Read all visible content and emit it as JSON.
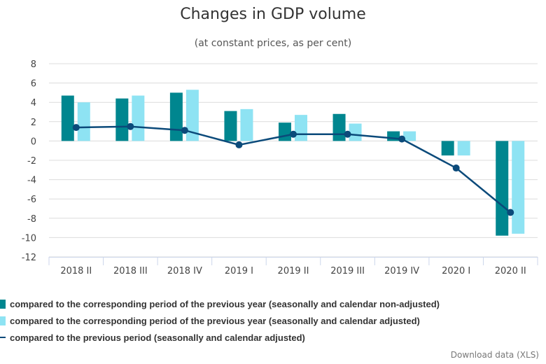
{
  "chart_data": {
    "type": "bar",
    "title": "Changes in GDP volume",
    "subtitle": "(at constant prices, as per cent)",
    "categories": [
      "2018 II",
      "2018 III",
      "2018 IV",
      "2019 I",
      "2019 II",
      "2019 III",
      "2019 IV",
      "2020 I",
      "2020 II"
    ],
    "ylim": [
      -12,
      8
    ],
    "yticks": [
      8,
      6,
      4,
      2,
      0,
      -2,
      -4,
      -6,
      -8,
      -10,
      -12
    ],
    "grid": true,
    "legend_position": "bottom",
    "series": [
      {
        "name": "compared to the corresponding period of the previous year (seasonally and calendar non-adjusted)",
        "type": "bar",
        "color": "#00868f",
        "values": [
          4.7,
          4.4,
          5.0,
          3.1,
          1.9,
          2.8,
          1.0,
          -1.5,
          -9.8
        ]
      },
      {
        "name": "compared to the corresponding period of the previous year (seasonally and calendar adjusted)",
        "type": "bar",
        "color": "#8ee3f3",
        "values": [
          4.0,
          4.7,
          5.3,
          3.3,
          2.7,
          1.8,
          1.0,
          -1.5,
          -9.6
        ]
      },
      {
        "name": "compared to the previous period (seasonally and calendar adjusted)",
        "type": "line",
        "color": "#0b4a7a",
        "values": [
          1.4,
          1.5,
          1.1,
          -0.4,
          0.7,
          0.7,
          0.2,
          -2.8,
          -7.4
        ]
      }
    ]
  },
  "download_label": "Download data (XLS)"
}
